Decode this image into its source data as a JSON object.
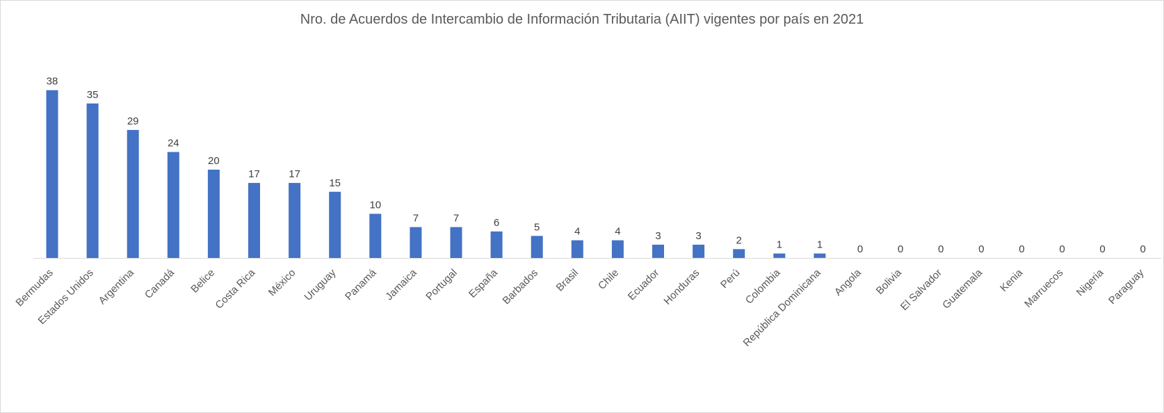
{
  "chart_data": {
    "type": "bar",
    "title": "Nro. de Acuerdos de Intercambio de Información Tributaria (AIIT) vigentes por país en 2021",
    "xlabel": "",
    "ylabel": "",
    "categories": [
      "Bermudas",
      "Estados Unidos",
      "Argentina",
      "Canadá",
      "Belice",
      "Costa Rica",
      "México",
      "Uruguay",
      "Panamá",
      "Jamaica",
      "Portugal",
      "España",
      "Barbados",
      "Brasil",
      "Chile",
      "Ecuador",
      "Honduras",
      "Perú",
      "Colombia",
      "República Dominicana",
      "Angola",
      "Bolivia",
      "El Salvador",
      "Guatemala",
      "Kenia",
      "Marruecos",
      "Nigeria",
      "Paraguay"
    ],
    "values": [
      38,
      35,
      29,
      24,
      20,
      17,
      17,
      15,
      10,
      7,
      7,
      6,
      5,
      4,
      4,
      3,
      3,
      2,
      1,
      1,
      0,
      0,
      0,
      0,
      0,
      0,
      0,
      0
    ],
    "ylim": [
      0,
      40
    ],
    "grid": false,
    "legend": "none",
    "bar_color": "#4472c4",
    "axis_color": "#d9d9d9"
  }
}
